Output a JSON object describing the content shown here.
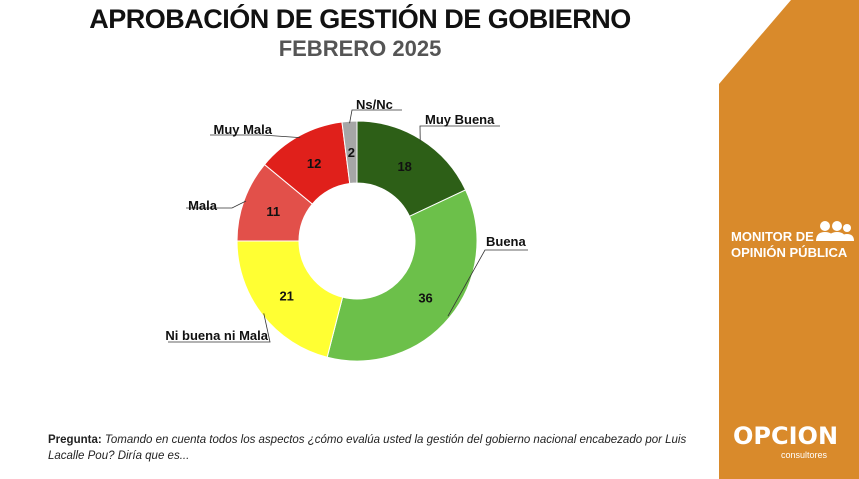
{
  "header": {
    "title": "APROBACIÓN DE GESTIÓN DE GOBIERNO",
    "subtitle": "FEBRERO 2025"
  },
  "chart_data": {
    "type": "pie",
    "title": "APROBACIÓN DE GESTIÓN DE GOBIERNO",
    "subtitle": "FEBRERO 2025",
    "donut": true,
    "legend": "none (callout labels)",
    "slices": [
      {
        "label": "Muy Buena",
        "value": 18,
        "color": "#2d5f17"
      },
      {
        "label": "Buena",
        "value": 36,
        "color": "#6cc04a"
      },
      {
        "label": "Ni buena ni Mala",
        "value": 21,
        "color": "#ffff33"
      },
      {
        "label": "Mala",
        "value": 11,
        "color": "#e2504a"
      },
      {
        "label": "Muy Mala",
        "value": 12,
        "color": "#e0201b"
      },
      {
        "label": "Ns/Nc",
        "value": 2,
        "color": "#a6a6a6"
      }
    ]
  },
  "sidebar": {
    "color": "#d98a2b",
    "monitor_line1": "MONITOR DE",
    "monitor_line2": "OPINIÓN PÚBLICA",
    "logo": "OPCION",
    "logo_sub": "consultores"
  },
  "question": {
    "label": "Pregunta:",
    "text": "Tomando en cuenta todos los aspectos ¿cómo evalúa usted la gestión del gobierno nacional encabezado por Luis Lacalle Pou? Diría que es..."
  }
}
